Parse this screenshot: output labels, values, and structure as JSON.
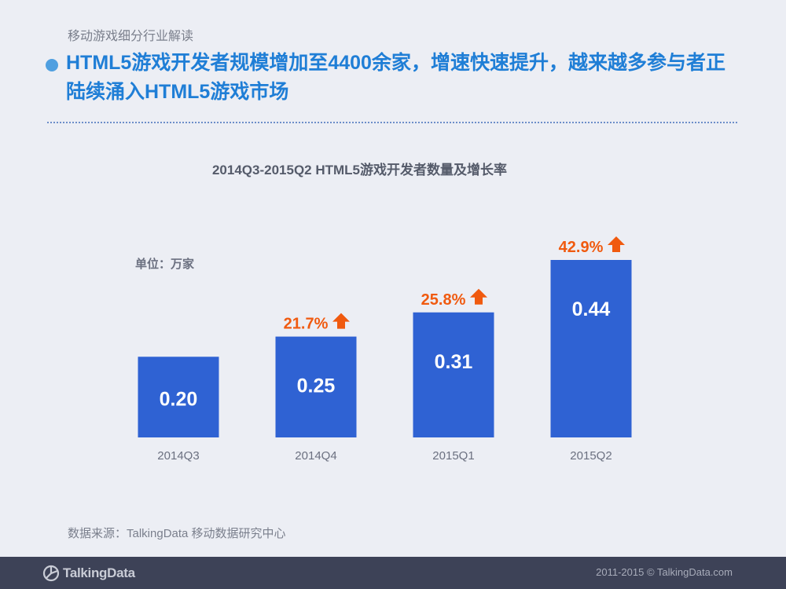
{
  "section_label": "移动游戏细分行业解读",
  "headline": "HTML5游戏开发者规模增加至4400余家，增速快速提升，越来越多参与者正陆续涌入HTML5游戏市场",
  "unit_label": "单位：万家",
  "source": "数据来源：TalkingData 移动数据研究中心",
  "footer": {
    "logo_text": "TalkingData",
    "copyright": "2011-2015 © TalkingData.com"
  },
  "colors": {
    "bar": "#2f62d3",
    "growth": "#f05a0f",
    "headline": "#1f7ed6",
    "footer": "#3d4257"
  },
  "chart_data": {
    "type": "bar",
    "title": "2014Q3-2015Q2 HTML5游戏开发者数量及增长率",
    "categories": [
      "2014Q3",
      "2014Q4",
      "2015Q1",
      "2015Q2"
    ],
    "values": [
      0.2,
      0.25,
      0.31,
      0.44
    ],
    "value_labels": [
      "0.20",
      "0.25",
      "0.31",
      "0.44"
    ],
    "growth_labels": [
      "",
      "21.7%",
      "25.8%",
      "42.9%"
    ],
    "growth_icon": "arrow-up-icon",
    "ylabel": "单位：万家",
    "ylim": [
      0,
      0.44
    ],
    "grid": false,
    "legend": "none"
  }
}
